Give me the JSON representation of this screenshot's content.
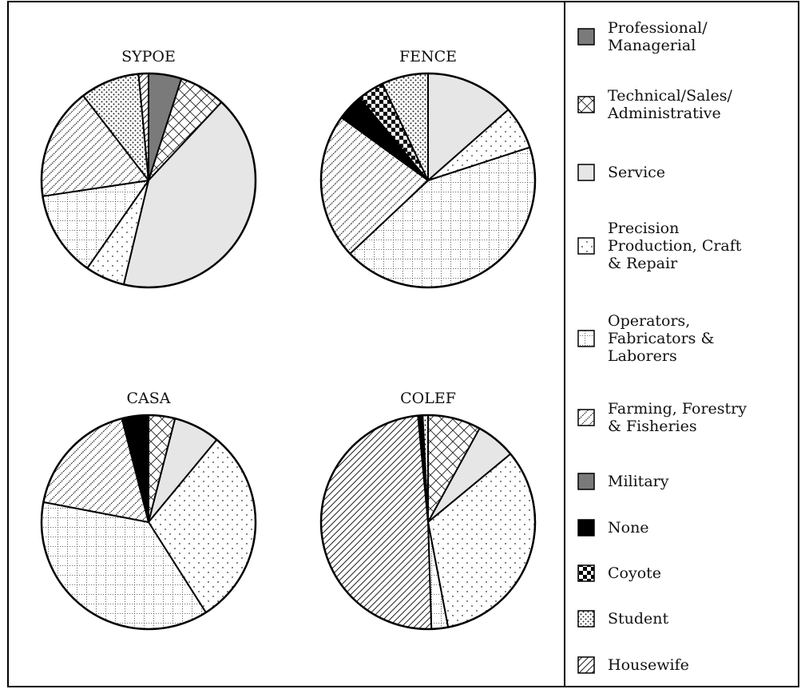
{
  "chart_data": {
    "type": "pie",
    "legend_position": "right",
    "categories": [
      {
        "key": "professional",
        "label": [
          "Professional/",
          "Managerial"
        ],
        "pattern": "solid-gray"
      },
      {
        "key": "technical",
        "label": [
          "Technical/Sales/",
          "Administrative"
        ],
        "pattern": "crosshatch"
      },
      {
        "key": "service",
        "label": [
          "Service"
        ],
        "pattern": "light-gray"
      },
      {
        "key": "precision",
        "label": [
          "Precision",
          "Production, Craft",
          "& Repair"
        ],
        "pattern": "sparse-dots"
      },
      {
        "key": "operators",
        "label": [
          "Operators,",
          "Fabricators &",
          "Laborers"
        ],
        "pattern": "dotted-grid"
      },
      {
        "key": "farming",
        "label": [
          "Farming, Forestry",
          "& Fisheries"
        ],
        "pattern": "diagonal-dotted"
      },
      {
        "key": "military",
        "label": [
          "Military"
        ],
        "pattern": "solid-gray"
      },
      {
        "key": "none",
        "label": [
          "None"
        ],
        "pattern": "solid-black"
      },
      {
        "key": "coyote",
        "label": [
          "Coyote"
        ],
        "pattern": "checker"
      },
      {
        "key": "student",
        "label": [
          "Student"
        ],
        "pattern": "dense-dots"
      },
      {
        "key": "housewife",
        "label": [
          "Housewife"
        ],
        "pattern": "diagonal-lines"
      }
    ],
    "pies": [
      {
        "title": "SYPOE",
        "slices": [
          {
            "category": "professional",
            "value": 5
          },
          {
            "category": "technical",
            "value": 7
          },
          {
            "category": "service",
            "value": 42
          },
          {
            "category": "precision",
            "value": 6
          },
          {
            "category": "operators",
            "value": 13
          },
          {
            "category": "farming",
            "value": 17
          },
          {
            "category": "student",
            "value": 9
          },
          {
            "category": "housewife",
            "value": 1.5
          }
        ]
      },
      {
        "title": "FENCE",
        "slices": [
          {
            "category": "service",
            "value": 13.5
          },
          {
            "category": "precision",
            "value": 6.5
          },
          {
            "category": "operators",
            "value": 43
          },
          {
            "category": "farming",
            "value": 22
          },
          {
            "category": "none",
            "value": 4
          },
          {
            "category": "coyote",
            "value": 4
          },
          {
            "category": "student",
            "value": 7
          }
        ]
      },
      {
        "title": "CASA",
        "slices": [
          {
            "category": "technical",
            "value": 4
          },
          {
            "category": "service",
            "value": 7
          },
          {
            "category": "precision",
            "value": 30
          },
          {
            "category": "operators",
            "value": 37
          },
          {
            "category": "farming",
            "value": 18
          },
          {
            "category": "none",
            "value": 4
          }
        ]
      },
      {
        "title": "COLEF",
        "slices": [
          {
            "category": "technical",
            "value": 8
          },
          {
            "category": "service",
            "value": 6
          },
          {
            "category": "precision",
            "value": 33
          },
          {
            "category": "operators",
            "value": 2.5
          },
          {
            "category": "housewife",
            "value": 49
          },
          {
            "category": "none",
            "value": 0.7
          },
          {
            "category": "student",
            "value": 0.8
          }
        ]
      }
    ]
  }
}
